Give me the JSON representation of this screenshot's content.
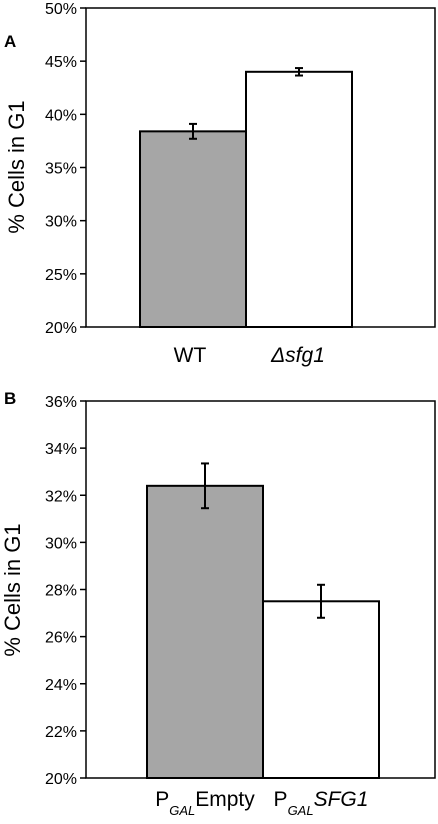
{
  "chart_data": [
    {
      "panel": "A",
      "type": "bar",
      "ylabel": "% Cells in G1",
      "ylim": [
        20,
        50
      ],
      "yticks": [
        20,
        25,
        30,
        35,
        40,
        45,
        50
      ],
      "ytick_labels": [
        "20%",
        "25%",
        "30%",
        "35%",
        "40%",
        "45%",
        "50%"
      ],
      "categories": [
        {
          "text": "WT",
          "sub": "",
          "italic": ""
        },
        {
          "text": "Δsfg1",
          "sub": "",
          "italic": "true"
        }
      ],
      "values": [
        38.4,
        44.0
      ],
      "errors": [
        0.7,
        0.35
      ],
      "bar_colors": [
        "#a6a6a6",
        "#ffffff"
      ],
      "grid": false
    },
    {
      "panel": "B",
      "type": "bar",
      "ylabel": "% Cells in G1",
      "ylim": [
        20,
        36
      ],
      "yticks": [
        20,
        22,
        24,
        26,
        28,
        30,
        32,
        34,
        36
      ],
      "ytick_labels": [
        "20%",
        "22%",
        "24%",
        "26%",
        "28%",
        "30%",
        "32%",
        "34%",
        "36%"
      ],
      "categories": [
        {
          "text": "P",
          "sub": "GAL",
          "tail": "Empty",
          "italic": ""
        },
        {
          "text": "P",
          "sub": "GAL",
          "tail": "SFG1",
          "italic": "tail"
        }
      ],
      "values": [
        32.4,
        27.5
      ],
      "errors": [
        0.95,
        0.7
      ],
      "bar_colors": [
        "#a6a6a6",
        "#ffffff"
      ],
      "grid": false
    }
  ]
}
